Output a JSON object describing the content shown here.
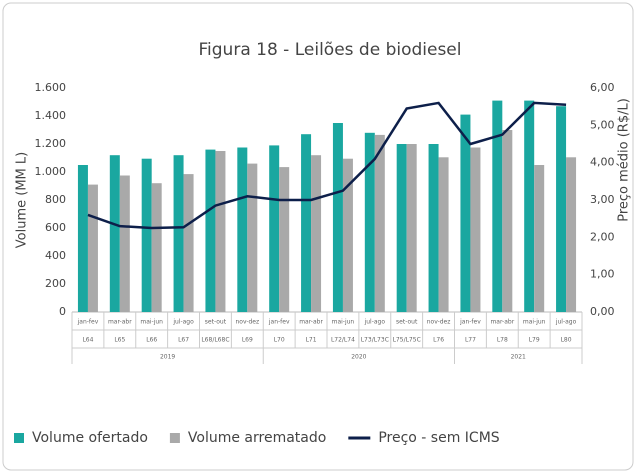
{
  "chart_data": {
    "type": "bar-line",
    "title": "Figura 18 - Leilões de biodiesel",
    "ylabel": "Volume (MM L)",
    "y2label": "Preço médio (R$/L)",
    "categories": [
      "jan-fev",
      "mar-abr",
      "mai-jun",
      "jul-ago",
      "set-out",
      "nov-dez",
      "jan-fev",
      "mar-abr",
      "mai-jun",
      "jul-ago",
      "set-out",
      "nov-dez",
      "jan-fev",
      "mar-abr",
      "mai-jun",
      "jul-ago"
    ],
    "auctions": [
      "L64",
      "L65",
      "L66",
      "L67",
      "L68/L68C",
      "L69",
      "L70",
      "L71",
      "L72/L74",
      "L73/L73C",
      "L75/L75C",
      "L76",
      "L77",
      "L78",
      "L79",
      "L80"
    ],
    "years": [
      "2019",
      "2019",
      "2019",
      "2019",
      "2019",
      "2019",
      "2020",
      "2020",
      "2020",
      "2020",
      "2020",
      "2020",
      "2021",
      "2021",
      "2021",
      "2021"
    ],
    "series": [
      {
        "name": "Volume ofertado",
        "color": "#1aa7a0",
        "kind": "bar",
        "axis": "y",
        "values": [
          1050,
          1120,
          1095,
          1120,
          1160,
          1175,
          1190,
          1270,
          1350,
          1280,
          1200,
          1200,
          1410,
          1510,
          1510,
          1470
        ]
      },
      {
        "name": "Volume arrematado",
        "color": "#a9a9a9",
        "kind": "bar",
        "axis": "y",
        "values": [
          910,
          975,
          920,
          985,
          1150,
          1060,
          1035,
          1120,
          1095,
          1265,
          1200,
          1105,
          1175,
          1300,
          1050,
          1105
        ]
      },
      {
        "name": "Preço - sem ICMS",
        "color": "#0d1f4a",
        "kind": "line",
        "axis": "y2",
        "values": [
          2.6,
          2.3,
          2.25,
          2.27,
          2.85,
          3.1,
          3.0,
          3.0,
          3.25,
          4.1,
          5.45,
          5.6,
          4.5,
          4.75,
          5.6,
          5.55
        ]
      }
    ],
    "ylim": [
      0,
      1600
    ],
    "yticks": [
      0,
      200,
      400,
      600,
      800,
      {
        "value": 1000,
        "label": "1.000"
      },
      {
        "value": 1200,
        "label": "1.200"
      },
      {
        "value": 1400,
        "label": "1.400"
      },
      {
        "value": 1600,
        "label": "1.600"
      }
    ],
    "y2lim": [
      0,
      6
    ],
    "y2ticks": [
      {
        "value": 0,
        "label": "0,00"
      },
      {
        "value": 1,
        "label": "1,00"
      },
      {
        "value": 2,
        "label": "2,00"
      },
      {
        "value": 3,
        "label": "3,00"
      },
      {
        "value": 4,
        "label": "4,00"
      },
      {
        "value": 5,
        "label": "5,00"
      },
      {
        "value": 6,
        "label": "6,00"
      }
    ],
    "legend": "bottom"
  }
}
